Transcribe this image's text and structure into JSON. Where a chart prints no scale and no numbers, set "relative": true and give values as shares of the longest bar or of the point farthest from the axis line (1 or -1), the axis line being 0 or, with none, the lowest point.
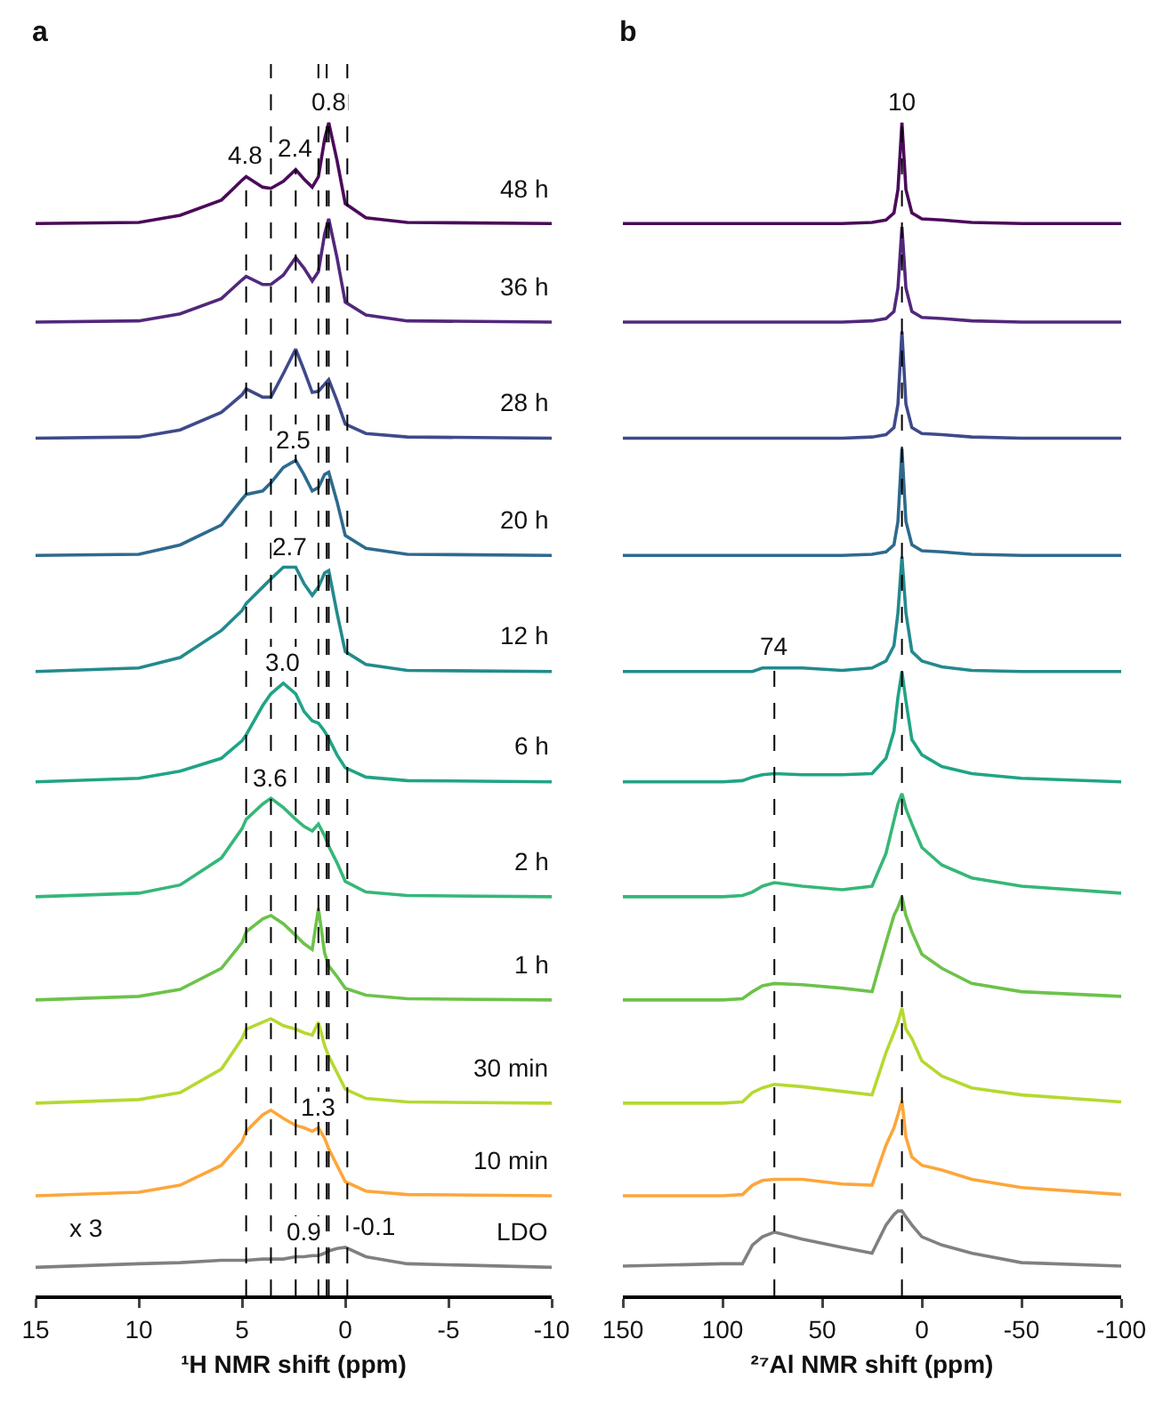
{
  "chart_data": [
    {
      "type": "line",
      "title": "a",
      "xlabel": "¹H NMR shift (ppm)",
      "relative": true,
      "tick_labels": "x",
      "xlim": [
        15,
        -10
      ],
      "xticks": [
        15,
        10,
        5,
        0,
        -5,
        -10
      ],
      "x": [
        15,
        10,
        8,
        6,
        5,
        4.8,
        4,
        3.6,
        3,
        2.4,
        2,
        1.6,
        1.3,
        1,
        0.8,
        0.4,
        0,
        -1,
        -3,
        -10
      ],
      "series": [
        {
          "name": "48 h",
          "color": "#4b0a5a",
          "values": [
            0.914,
            0.915,
            0.921,
            0.934,
            0.951,
            0.954,
            0.945,
            0.944,
            0.95,
            0.96,
            0.952,
            0.945,
            0.954,
            0.986,
            1,
            0.968,
            0.931,
            0.919,
            0.915,
            0.914
          ]
        },
        {
          "name": "36 h",
          "color": "#51287c",
          "values": [
            0.83,
            0.831,
            0.837,
            0.85,
            0.866,
            0.869,
            0.862,
            0.862,
            0.87,
            0.885,
            0.876,
            0.865,
            0.873,
            0.905,
            0.918,
            0.885,
            0.847,
            0.836,
            0.831,
            0.83
          ]
        },
        {
          "name": "28 h",
          "color": "#3f4a8a",
          "values": [
            0.731,
            0.732,
            0.738,
            0.753,
            0.768,
            0.773,
            0.766,
            0.766,
            0.786,
            0.807,
            0.789,
            0.77,
            0.771,
            0.777,
            0.781,
            0.763,
            0.743,
            0.735,
            0.732,
            0.731
          ]
        },
        {
          "name": "20 h",
          "color": "#2e6a8e",
          "values": [
            0.631,
            0.632,
            0.64,
            0.657,
            0.679,
            0.683,
            0.686,
            0.693,
            0.706,
            0.712,
            0.7,
            0.686,
            0.689,
            0.7,
            0.702,
            0.677,
            0.648,
            0.637,
            0.632,
            0.631
          ]
        },
        {
          "name": "12 h",
          "color": "#238a8d",
          "values": [
            0.532,
            0.535,
            0.544,
            0.567,
            0.584,
            0.59,
            0.604,
            0.611,
            0.621,
            0.621,
            0.607,
            0.597,
            0.604,
            0.616,
            0.618,
            0.582,
            0.549,
            0.538,
            0.533,
            0.532
          ]
        },
        {
          "name": "6 h",
          "color": "#20a486",
          "values": [
            0.438,
            0.441,
            0.447,
            0.458,
            0.473,
            0.478,
            0.503,
            0.513,
            0.522,
            0.513,
            0.498,
            0.49,
            0.488,
            0.481,
            0.475,
            0.461,
            0.45,
            0.442,
            0.439,
            0.438
          ]
        },
        {
          "name": "2 h",
          "color": "#35b779",
          "values": [
            0.34,
            0.343,
            0.35,
            0.373,
            0.398,
            0.406,
            0.419,
            0.424,
            0.416,
            0.406,
            0.4,
            0.396,
            0.402,
            0.392,
            0.383,
            0.369,
            0.353,
            0.344,
            0.341,
            0.34
          ]
        },
        {
          "name": "1 h",
          "color": "#6cc24a",
          "values": [
            0.252,
            0.255,
            0.261,
            0.279,
            0.301,
            0.31,
            0.321,
            0.324,
            0.317,
            0.307,
            0.3,
            0.295,
            0.33,
            0.292,
            0.281,
            0.272,
            0.262,
            0.256,
            0.253,
            0.252
          ]
        },
        {
          "name": "30 min",
          "color": "#b5d930",
          "values": [
            0.164,
            0.167,
            0.173,
            0.193,
            0.219,
            0.227,
            0.233,
            0.236,
            0.23,
            0.227,
            0.224,
            0.222,
            0.233,
            0.213,
            0.204,
            0.19,
            0.176,
            0.168,
            0.165,
            0.164
          ]
        },
        {
          "name": "10 min",
          "color": "#fda63a",
          "values": [
            0.085,
            0.088,
            0.094,
            0.111,
            0.131,
            0.14,
            0.154,
            0.158,
            0.151,
            0.145,
            0.143,
            0.14,
            0.143,
            0.134,
            0.125,
            0.111,
            0.097,
            0.089,
            0.086,
            0.085
          ]
        },
        {
          "name": "LDO",
          "color": "#808080",
          "values": [
            0.024,
            0.027,
            0.028,
            0.03,
            0.03,
            0.03,
            0.031,
            0.031,
            0.031,
            0.033,
            0.033,
            0.034,
            0.034,
            0.036,
            0.038,
            0.04,
            0.041,
            0.033,
            0.027,
            0.024
          ]
        }
      ],
      "ref_lines": [
        {
          "axis": "x",
          "value": 4.8,
          "line_style": "dashed",
          "color": "#000000"
        },
        {
          "axis": "x",
          "value": 2.4,
          "line_style": "dashed",
          "color": "#000000"
        },
        {
          "axis": "x",
          "value": 0.8,
          "line_style": "dashed",
          "color": "#000000"
        },
        {
          "axis": "x",
          "value": 1.3,
          "line_style": "dashed",
          "color": "#000000"
        },
        {
          "axis": "x",
          "value": 3.6,
          "line_style": "dashed",
          "color": "#000000"
        },
        {
          "axis": "x",
          "value": 0.9,
          "line_style": "dashed",
          "color": "#000000"
        },
        {
          "axis": "x",
          "value": -0.1,
          "line_style": "dashed",
          "color": "#000000"
        }
      ],
      "annotations": [
        {
          "text": "0.8",
          "x": 0.8,
          "y": 1
        },
        {
          "text": "4.8",
          "x": 4.8,
          "y": 0.954
        },
        {
          "text": "2.4",
          "x": 2.4,
          "y": 0.96
        },
        {
          "text": "2.5",
          "x": 2.5,
          "y": 0.712
        },
        {
          "text": "2.7",
          "x": 2.7,
          "y": 0.621
        },
        {
          "text": "3.0",
          "x": 3.0,
          "y": 0.522
        },
        {
          "text": "3.6",
          "x": 3.6,
          "y": 0.424
        },
        {
          "text": "1.3",
          "x": 1.3,
          "y": 0.143
        },
        {
          "text": "0.9",
          "x": 0.9,
          "y": 0.037
        },
        {
          "text": "-0.1",
          "x": -0.1,
          "y": 0.041
        },
        "x 3"
      ]
    },
    {
      "type": "line",
      "title": "b",
      "xlabel": "²⁷Al NMR shift (ppm)",
      "relative": true,
      "tick_labels": "x",
      "xlim": [
        150,
        -100
      ],
      "xticks": [
        150,
        100,
        50,
        0,
        -50,
        -100
      ],
      "x": [
        150,
        100,
        90,
        85,
        80,
        74,
        60,
        40,
        25,
        18,
        14,
        12,
        10,
        8,
        5,
        0,
        -10,
        -25,
        -50,
        -100
      ],
      "series": [
        {
          "color": "#4b0a5a",
          "values": [
            0.914,
            0.914,
            0.914,
            0.914,
            0.914,
            0.914,
            0.914,
            0.914,
            0.915,
            0.917,
            0.923,
            0.943,
            1,
            0.943,
            0.923,
            0.918,
            0.917,
            0.915,
            0.914,
            0.914
          ]
        },
        {
          "color": "#51287c",
          "values": [
            0.83,
            0.83,
            0.83,
            0.83,
            0.83,
            0.83,
            0.83,
            0.83,
            0.831,
            0.833,
            0.839,
            0.859,
            0.911,
            0.859,
            0.839,
            0.834,
            0.833,
            0.831,
            0.83,
            0.83
          ]
        },
        {
          "color": "#3f4a8a",
          "values": [
            0.731,
            0.731,
            0.731,
            0.731,
            0.731,
            0.731,
            0.731,
            0.731,
            0.732,
            0.734,
            0.74,
            0.76,
            0.822,
            0.76,
            0.74,
            0.735,
            0.734,
            0.732,
            0.731,
            0.731
          ]
        },
        {
          "color": "#2e6a8e",
          "values": [
            0.631,
            0.631,
            0.631,
            0.631,
            0.631,
            0.631,
            0.631,
            0.631,
            0.632,
            0.634,
            0.64,
            0.66,
            0.722,
            0.66,
            0.64,
            0.635,
            0.634,
            0.632,
            0.631,
            0.631
          ]
        },
        {
          "color": "#238a8d",
          "values": [
            0.532,
            0.532,
            0.532,
            0.532,
            0.535,
            0.535,
            0.535,
            0.533,
            0.535,
            0.541,
            0.554,
            0.582,
            0.63,
            0.582,
            0.549,
            0.541,
            0.536,
            0.533,
            0.532,
            0.532
          ]
        },
        {
          "color": "#20a486",
          "values": [
            0.438,
            0.438,
            0.439,
            0.442,
            0.444,
            0.445,
            0.444,
            0.444,
            0.445,
            0.458,
            0.481,
            0.51,
            0.532,
            0.507,
            0.474,
            0.461,
            0.451,
            0.445,
            0.441,
            0.438
          ]
        },
        {
          "color": "#35b779",
          "values": [
            0.34,
            0.34,
            0.341,
            0.344,
            0.349,
            0.352,
            0.349,
            0.346,
            0.349,
            0.377,
            0.405,
            0.419,
            0.428,
            0.415,
            0.402,
            0.382,
            0.367,
            0.356,
            0.349,
            0.343
          ]
        },
        {
          "color": "#6cc24a",
          "values": [
            0.252,
            0.252,
            0.253,
            0.259,
            0.264,
            0.266,
            0.265,
            0.262,
            0.259,
            0.301,
            0.324,
            0.331,
            0.34,
            0.324,
            0.31,
            0.291,
            0.279,
            0.266,
            0.259,
            0.255
          ]
        },
        {
          "color": "#b5d930",
          "values": [
            0.164,
            0.164,
            0.165,
            0.173,
            0.177,
            0.18,
            0.178,
            0.174,
            0.171,
            0.207,
            0.224,
            0.233,
            0.245,
            0.227,
            0.219,
            0.2,
            0.187,
            0.177,
            0.171,
            0.165
          ]
        },
        {
          "color": "#fda63a",
          "values": [
            0.085,
            0.085,
            0.086,
            0.094,
            0.098,
            0.099,
            0.099,
            0.095,
            0.094,
            0.128,
            0.143,
            0.154,
            0.166,
            0.135,
            0.118,
            0.111,
            0.107,
            0.099,
            0.092,
            0.086
          ]
        },
        {
          "color": "#808080",
          "values": [
            0.025,
            0.027,
            0.027,
            0.043,
            0.05,
            0.054,
            0.048,
            0.041,
            0.036,
            0.06,
            0.069,
            0.072,
            0.072,
            0.067,
            0.06,
            0.05,
            0.043,
            0.036,
            0.028,
            0.025
          ]
        }
      ],
      "ref_lines": [
        {
          "axis": "x",
          "value": 10,
          "line_style": "dashed",
          "color": "#000000"
        },
        {
          "axis": "x",
          "value": 74,
          "line_style": "dashed",
          "color": "#000000"
        }
      ],
      "annotations": [
        {
          "text": "10",
          "x": 10,
          "y": 1
        },
        {
          "text": "74",
          "x": 74,
          "y": 0.535
        }
      ]
    }
  ]
}
